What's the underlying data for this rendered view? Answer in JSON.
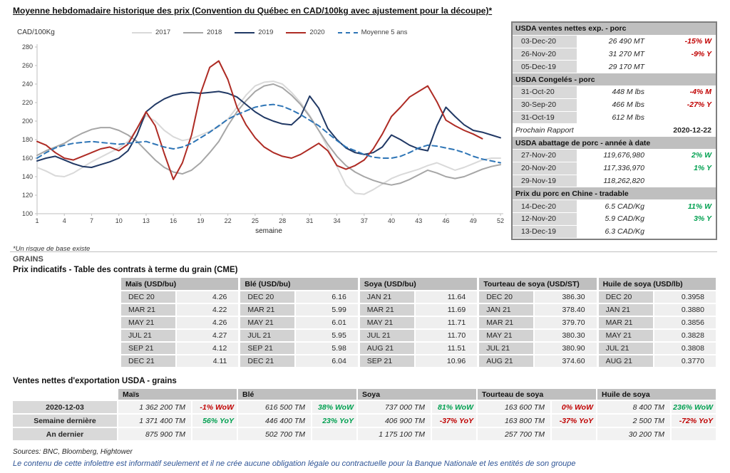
{
  "page": {
    "title": "Moyenne hebdomadaire historique des prix (Convention du Québec en CAD/100kg avec ajustement pour la découpe)*",
    "footnote": "*Un risque de base existe",
    "sources": "Sources: BNC, Bloomberg, Hightower",
    "disclaimer": "Le contenu de cette infolettre est informatif seulement et il ne crée aucune obligation légale ou contractuelle pour la Banque Nationale et les entités de son groupe"
  },
  "chart_data": {
    "type": "line",
    "title": "Moyenne hebdomadaire historique des prix (Convention du Québec en CAD/100kg avec ajustement pour la découpe)",
    "ylabel": "CAD/100Kg",
    "xlabel": "semaine",
    "ylim": [
      100,
      280
    ],
    "ytick_step": 20,
    "xlim": [
      1,
      52
    ],
    "xticks": [
      1,
      4,
      7,
      10,
      13,
      16,
      19,
      22,
      25,
      28,
      31,
      34,
      37,
      40,
      43,
      46,
      49,
      52
    ],
    "grid": false,
    "legend_position": "top",
    "series": [
      {
        "name": "2017",
        "color": "#d9d9d9",
        "dash": false,
        "values": [
          150,
          146,
          141,
          140,
          144,
          150,
          156,
          161,
          166,
          171,
          178,
          192,
          206,
          200,
          190,
          183,
          179,
          181,
          185,
          189,
          194,
          202,
          215,
          228,
          238,
          242,
          243,
          240,
          231,
          220,
          206,
          190,
          171,
          151,
          131,
          122,
          121,
          126,
          132,
          138,
          142,
          145,
          148,
          152,
          155,
          151,
          147,
          150,
          154,
          158,
          160,
          160
        ]
      },
      {
        "name": "2018",
        "color": "#a6a6a6",
        "dash": false,
        "values": [
          163,
          168,
          172,
          176,
          182,
          187,
          191,
          193,
          193,
          190,
          185,
          178,
          168,
          158,
          150,
          145,
          143,
          147,
          155,
          166,
          178,
          195,
          210,
          222,
          232,
          238,
          240,
          236,
          228,
          218,
          205,
          190,
          175,
          162,
          152,
          145,
          140,
          136,
          133,
          131,
          133,
          137,
          142,
          147,
          144,
          140,
          138,
          140,
          144,
          148,
          151,
          153
        ]
      },
      {
        "name": "2019",
        "color": "#203864",
        "dash": false,
        "values": [
          157,
          160,
          162,
          158,
          154,
          151,
          150,
          153,
          156,
          160,
          168,
          185,
          210,
          218,
          224,
          228,
          230,
          231,
          230,
          231,
          232,
          230,
          226,
          218,
          210,
          204,
          200,
          197,
          196,
          205,
          227,
          214,
          192,
          180,
          171,
          166,
          164,
          166,
          172,
          185,
          180,
          174,
          170,
          168,
          195,
          215,
          205,
          196,
          190,
          188,
          185,
          182
        ]
      },
      {
        "name": "2020",
        "color": "#ae2b24",
        "dash": false,
        "values": [
          178,
          174,
          166,
          160,
          158,
          162,
          166,
          170,
          172,
          168,
          175,
          192,
          210,
          195,
          165,
          137,
          155,
          185,
          230,
          258,
          265,
          245,
          215,
          196,
          182,
          172,
          166,
          162,
          160,
          164,
          170,
          176,
          168,
          152,
          148,
          152,
          158,
          170,
          186,
          205,
          215,
          226,
          232,
          238,
          221,
          201,
          195,
          190,
          186,
          181,
          null,
          null
        ]
      },
      {
        "name": "Moyenne 5 ans",
        "color": "#2e75b6",
        "dash": true,
        "values": [
          160,
          166,
          171,
          174,
          176,
          177,
          178,
          177,
          176,
          175,
          176,
          177,
          178,
          175,
          172,
          170,
          172,
          176,
          182,
          188,
          195,
          202,
          207,
          211,
          215,
          217,
          218,
          216,
          212,
          207,
          201,
          195,
          187,
          179,
          172,
          168,
          164,
          161,
          160,
          160,
          162,
          166,
          171,
          174,
          173,
          171,
          169,
          166,
          162,
          159,
          157,
          155
        ]
      }
    ]
  },
  "usda_panel": {
    "sections": [
      {
        "header": "USDA ventes nettes exp. - porc",
        "rows": [
          {
            "date": "03-Dec-20",
            "value": "26 490  MT",
            "change": "-15% W",
            "change_color": "neg"
          },
          {
            "date": "26-Nov-20",
            "value": "31 270  MT",
            "change": "-9% Y",
            "change_color": "neg"
          },
          {
            "date": "05-Dec-19",
            "value": "29 170  MT",
            "change": "",
            "change_color": ""
          }
        ]
      },
      {
        "header": "USDA Congelés - porc",
        "rows": [
          {
            "date": "31-Oct-20",
            "value": "448 M lbs",
            "change": "-4% M",
            "change_color": "neg"
          },
          {
            "date": "30-Sep-20",
            "value": "466 M lbs",
            "change": "-27% Y",
            "change_color": "neg"
          },
          {
            "date": "31-Oct-19",
            "value": "612 M lbs",
            "change": "",
            "change_color": ""
          }
        ]
      },
      {
        "type": "report",
        "label": "Prochain Rapport",
        "value": "2020-12-22"
      },
      {
        "header": "USDA abattage de porc - année à date",
        "rows": [
          {
            "date": "27-Nov-20",
            "value": "119,676,980",
            "change": "2% W",
            "change_color": "pos"
          },
          {
            "date": "20-Nov-20",
            "value": "117,336,970",
            "change": "1% Y",
            "change_color": "pos"
          },
          {
            "date": "29-Nov-19",
            "value": "118,262,820",
            "change": "",
            "change_color": ""
          }
        ]
      },
      {
        "header": "Prix du porc en Chine - tradable",
        "rows": [
          {
            "date": "14-Dec-20",
            "value": "6.5 CAD/Kg",
            "change": "11% W",
            "change_color": "pos"
          },
          {
            "date": "12-Nov-20",
            "value": "5.9 CAD/Kg",
            "change": "3% Y",
            "change_color": "pos"
          },
          {
            "date": "13-Dec-19",
            "value": "6.3 CAD/Kg",
            "change": "",
            "change_color": ""
          }
        ]
      }
    ]
  },
  "grains": {
    "section_title": "GRAINS",
    "futures_title": "Prix indicatifs - Table des contrats à terme du grain (CME)",
    "futures": [
      {
        "header": "Maïs (USD/bu)",
        "rows": [
          [
            "DEC 20",
            "4.26"
          ],
          [
            "MAR 21",
            "4.22"
          ],
          [
            "MAY 21",
            "4.26"
          ],
          [
            "JUL 21",
            "4.27"
          ],
          [
            "SEP 21",
            "4.12"
          ],
          [
            "DEC 21",
            "4.11"
          ]
        ]
      },
      {
        "header": "Blé (USD/bu)",
        "rows": [
          [
            "DEC 20",
            "6.16"
          ],
          [
            "MAR 21",
            "5.99"
          ],
          [
            "MAY 21",
            "6.01"
          ],
          [
            "JUL 21",
            "5.95"
          ],
          [
            "SEP 21",
            "5.98"
          ],
          [
            "DEC 21",
            "6.04"
          ]
        ]
      },
      {
        "header": "Soya (USD/bu)",
        "rows": [
          [
            "JAN 21",
            "11.64"
          ],
          [
            "MAR 21",
            "11.69"
          ],
          [
            "MAY 21",
            "11.71"
          ],
          [
            "JUL 21",
            "11.70"
          ],
          [
            "AUG 21",
            "11.51"
          ],
          [
            "SEP 21",
            "10.96"
          ]
        ]
      },
      {
        "header": "Tourteau de soya (USD/ST)",
        "rows": [
          [
            "DEC 20",
            "386.30"
          ],
          [
            "JAN 21",
            "378.40"
          ],
          [
            "MAR 21",
            "379.70"
          ],
          [
            "MAY 21",
            "380.30"
          ],
          [
            "JUL 21",
            "380.90"
          ],
          [
            "AUG 21",
            "374.60"
          ]
        ]
      },
      {
        "header": "Huile de soya (USD/lb)",
        "rows": [
          [
            "DEC 20",
            "0.3958"
          ],
          [
            "JAN 21",
            "0.3880"
          ],
          [
            "MAR 21",
            "0.3856"
          ],
          [
            "MAY 21",
            "0.3828"
          ],
          [
            "JUL 21",
            "0.3808"
          ],
          [
            "AUG 21",
            "0.3770"
          ]
        ]
      }
    ],
    "exports_title": "Ventes nettes d'exportation USDA - grains",
    "exports": {
      "commodities": [
        "Maïs",
        "Blé",
        "Soya",
        "Tourteau de soya",
        "Huile de soya"
      ],
      "rows": [
        {
          "label": "2020-12-03",
          "cells": [
            [
              "1 362 200 TM",
              "-1% WoW",
              "neg"
            ],
            [
              "616 500 TM",
              "38% WoW",
              "pos"
            ],
            [
              "737 000 TM",
              "81% WoW",
              "pos"
            ],
            [
              "163 600 TM",
              "0% WoW",
              "neg"
            ],
            [
              "8 400 TM",
              "236% WoW",
              "pos"
            ]
          ]
        },
        {
          "label": "Semaine dernière",
          "cells": [
            [
              "1 371 400 TM",
              "56% YoY",
              "pos"
            ],
            [
              "446 400 TM",
              "23% YoY",
              "pos"
            ],
            [
              "406 900 TM",
              "-37% YoY",
              "neg"
            ],
            [
              "163 800 TM",
              "-37% YoY",
              "neg"
            ],
            [
              "2 500 TM",
              "-72% YoY",
              "neg"
            ]
          ]
        },
        {
          "label": "An dernier",
          "cells": [
            [
              "875 900 TM",
              "",
              ""
            ],
            [
              "502 700 TM",
              "",
              ""
            ],
            [
              "1 175 100 TM",
              "",
              ""
            ],
            [
              "257 700 TM",
              "",
              ""
            ],
            [
              "30 200 TM",
              "",
              ""
            ]
          ]
        }
      ]
    }
  }
}
